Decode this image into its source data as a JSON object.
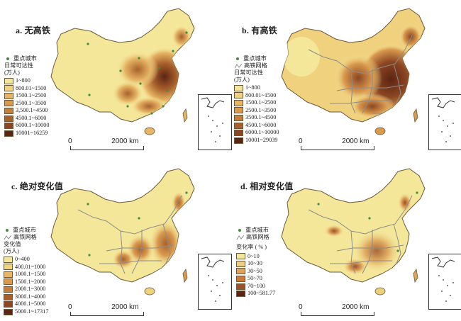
{
  "panels": [
    {
      "id": "a",
      "title": "a. 无高铁",
      "legend_markers": {
        "city": "重点城市"
      },
      "legend_title": [
        "日常可达性",
        "(万人)"
      ],
      "classes": [
        "1~800",
        "800.01~1500",
        "1500.1~2500",
        "2500.1~3500",
        "3,500.1~4500",
        "4500.1~6000",
        "6000.1~10000",
        "10001~16259"
      ],
      "scale_label": "0                    2000 km"
    },
    {
      "id": "b",
      "title": "b. 有高铁",
      "legend_markers": {
        "city": "重点城市",
        "rail": "高铁网格"
      },
      "legend_title": [
        "日常可达性",
        "(万人)"
      ],
      "classes": [
        "1~800",
        "800.01~1500",
        "1500.1~2500",
        "2500.1~3500",
        "3500.1~4500",
        "4500.1~6000",
        "6000.1~10000",
        "10001~29039"
      ],
      "scale_label": "0                    2000 km"
    },
    {
      "id": "c",
      "title": "c. 绝对变化值",
      "legend_markers": {
        "city": "重点城市",
        "rail": "高铁网格"
      },
      "legend_title": [
        "变化值",
        "(万人)"
      ],
      "classes": [
        "0~400",
        "400.01~1000",
        "1000.1~1500",
        "1500.1~2000",
        "2000.1~3000",
        "3000.1~4000",
        "4000.1~5000",
        "5000.1~17317"
      ],
      "scale_label": "0                    2000 km"
    },
    {
      "id": "d",
      "title": "d. 相对变化值",
      "legend_markers": {
        "city": "重点城市",
        "rail": "高铁网格"
      },
      "legend_title": [
        "变化率 ( % )"
      ],
      "classes": [
        "0~10",
        "10~30",
        "30~50",
        "50~70",
        "70~100",
        "100~581.77"
      ],
      "scale_label": "0                    2000 km"
    }
  ],
  "colors": {
    "ramp8": [
      "#f4e79a",
      "#f0d27e",
      "#e6b565",
      "#d99a4f",
      "#c57e3c",
      "#a9612c",
      "#8c4622",
      "#5c2412"
    ],
    "ramp6": [
      "#f4e79a",
      "#edd07e",
      "#dfa45a",
      "#c97b3b",
      "#9c5128",
      "#5c2412"
    ],
    "city": "#3f8f3f",
    "rail": "#8c8c8c",
    "outline": "#6b5a3a"
  }
}
